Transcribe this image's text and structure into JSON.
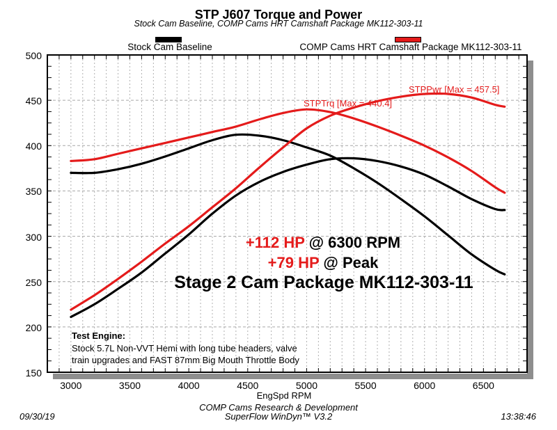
{
  "header": {
    "title": "STP J607 Torque and Power",
    "subtitle": "Stock Cam Baseline, COMP Cams HRT Camshaft Package MK112-303-11"
  },
  "legend": [
    {
      "label": "Stock Cam Baseline",
      "color": "#000000"
    },
    {
      "label": "COMP Cams HRT Camshaft Package MK112-303-11",
      "color": "#e41b1b"
    }
  ],
  "annotations": {
    "trq_label": "STPTrq [Max = 440.4]",
    "pwr_label": "STPPwr [Max = 457.5]",
    "hp1_red": "+112 HP",
    "hp1_black": " @ 6300 RPM",
    "hp2_red": "+79 HP",
    "hp2_black": " @ Peak",
    "package_line": "Stage 2 Cam Package MK112-303-11"
  },
  "test_engine": {
    "heading": "Test Engine:",
    "line1": "Stock 5.7L Non-VVT Hemi with long tube headers, valve",
    "line2": "train upgrades and FAST 87mm Big Mouth Throttle Body"
  },
  "axes": {
    "x_label": "EngSpd RPM",
    "x_ticks": [
      3000,
      3500,
      4000,
      4500,
      5000,
      5500,
      6000,
      6500
    ],
    "y_ticks": [
      500,
      450,
      400,
      350,
      300,
      250,
      200,
      150
    ]
  },
  "footer": {
    "center_line1": "COMP Cams Research & Development",
    "center_line2": "SuperFlow WinDyn™ V3.2",
    "date": "09/30/19",
    "time": "13:38:46"
  },
  "theme": {
    "accent_red": "#e41b1b",
    "shadow_gray": "#8e8e8e",
    "grid_gray": "#b0b0b0"
  },
  "chart_data": {
    "type": "line",
    "title": "STP J607 Torque and Power",
    "xlabel": "EngSpd RPM",
    "x_range": [
      2800,
      6870
    ],
    "y_range": [
      150,
      500
    ],
    "x_grid_step": 100,
    "y_tick_step": 50,
    "grid": true,
    "legend_position": "top",
    "x": [
      3000,
      3200,
      3400,
      3600,
      3800,
      4000,
      4200,
      4400,
      4600,
      4800,
      5000,
      5200,
      5400,
      5600,
      5800,
      6000,
      6200,
      6400,
      6600,
      6680
    ],
    "series": [
      {
        "id": "stptrq-comp-cam",
        "name": "STPTrq - COMP Cams HRT Camshaft Package MK112-303-11",
        "color": "#e41b1b",
        "max": 440.4,
        "values": [
          383,
          385,
          391,
          397,
          403,
          409,
          415,
          421,
          429,
          436,
          440,
          437,
          430,
          421,
          411,
          400,
          387,
          372,
          354,
          348
        ]
      },
      {
        "id": "stppwr-comp-cam",
        "name": "STPPwr - COMP Cams HRT Camshaft Package MK112-303-11",
        "color": "#e41b1b",
        "max": 457.5,
        "values": [
          219,
          235,
          253,
          272,
          292,
          311,
          332,
          353,
          376,
          398,
          419,
          433,
          442,
          449,
          454,
          457,
          457,
          453,
          445,
          443
        ]
      },
      {
        "id": "stptrq-stock",
        "name": "STPTrq - Stock Cam Baseline",
        "color": "#000000",
        "values": [
          370,
          370,
          374,
          380,
          388,
          397,
          406,
          412,
          411,
          406,
          398,
          389,
          375,
          359,
          341,
          322,
          301,
          280,
          263,
          258
        ]
      },
      {
        "id": "stppwr-stock",
        "name": "STPPwr - Stock Cam Baseline",
        "color": "#000000",
        "values": [
          211,
          225,
          242,
          260,
          281,
          302,
          325,
          345,
          360,
          371,
          379,
          385,
          386,
          383,
          377,
          368,
          355,
          341,
          330,
          329
        ]
      }
    ]
  }
}
